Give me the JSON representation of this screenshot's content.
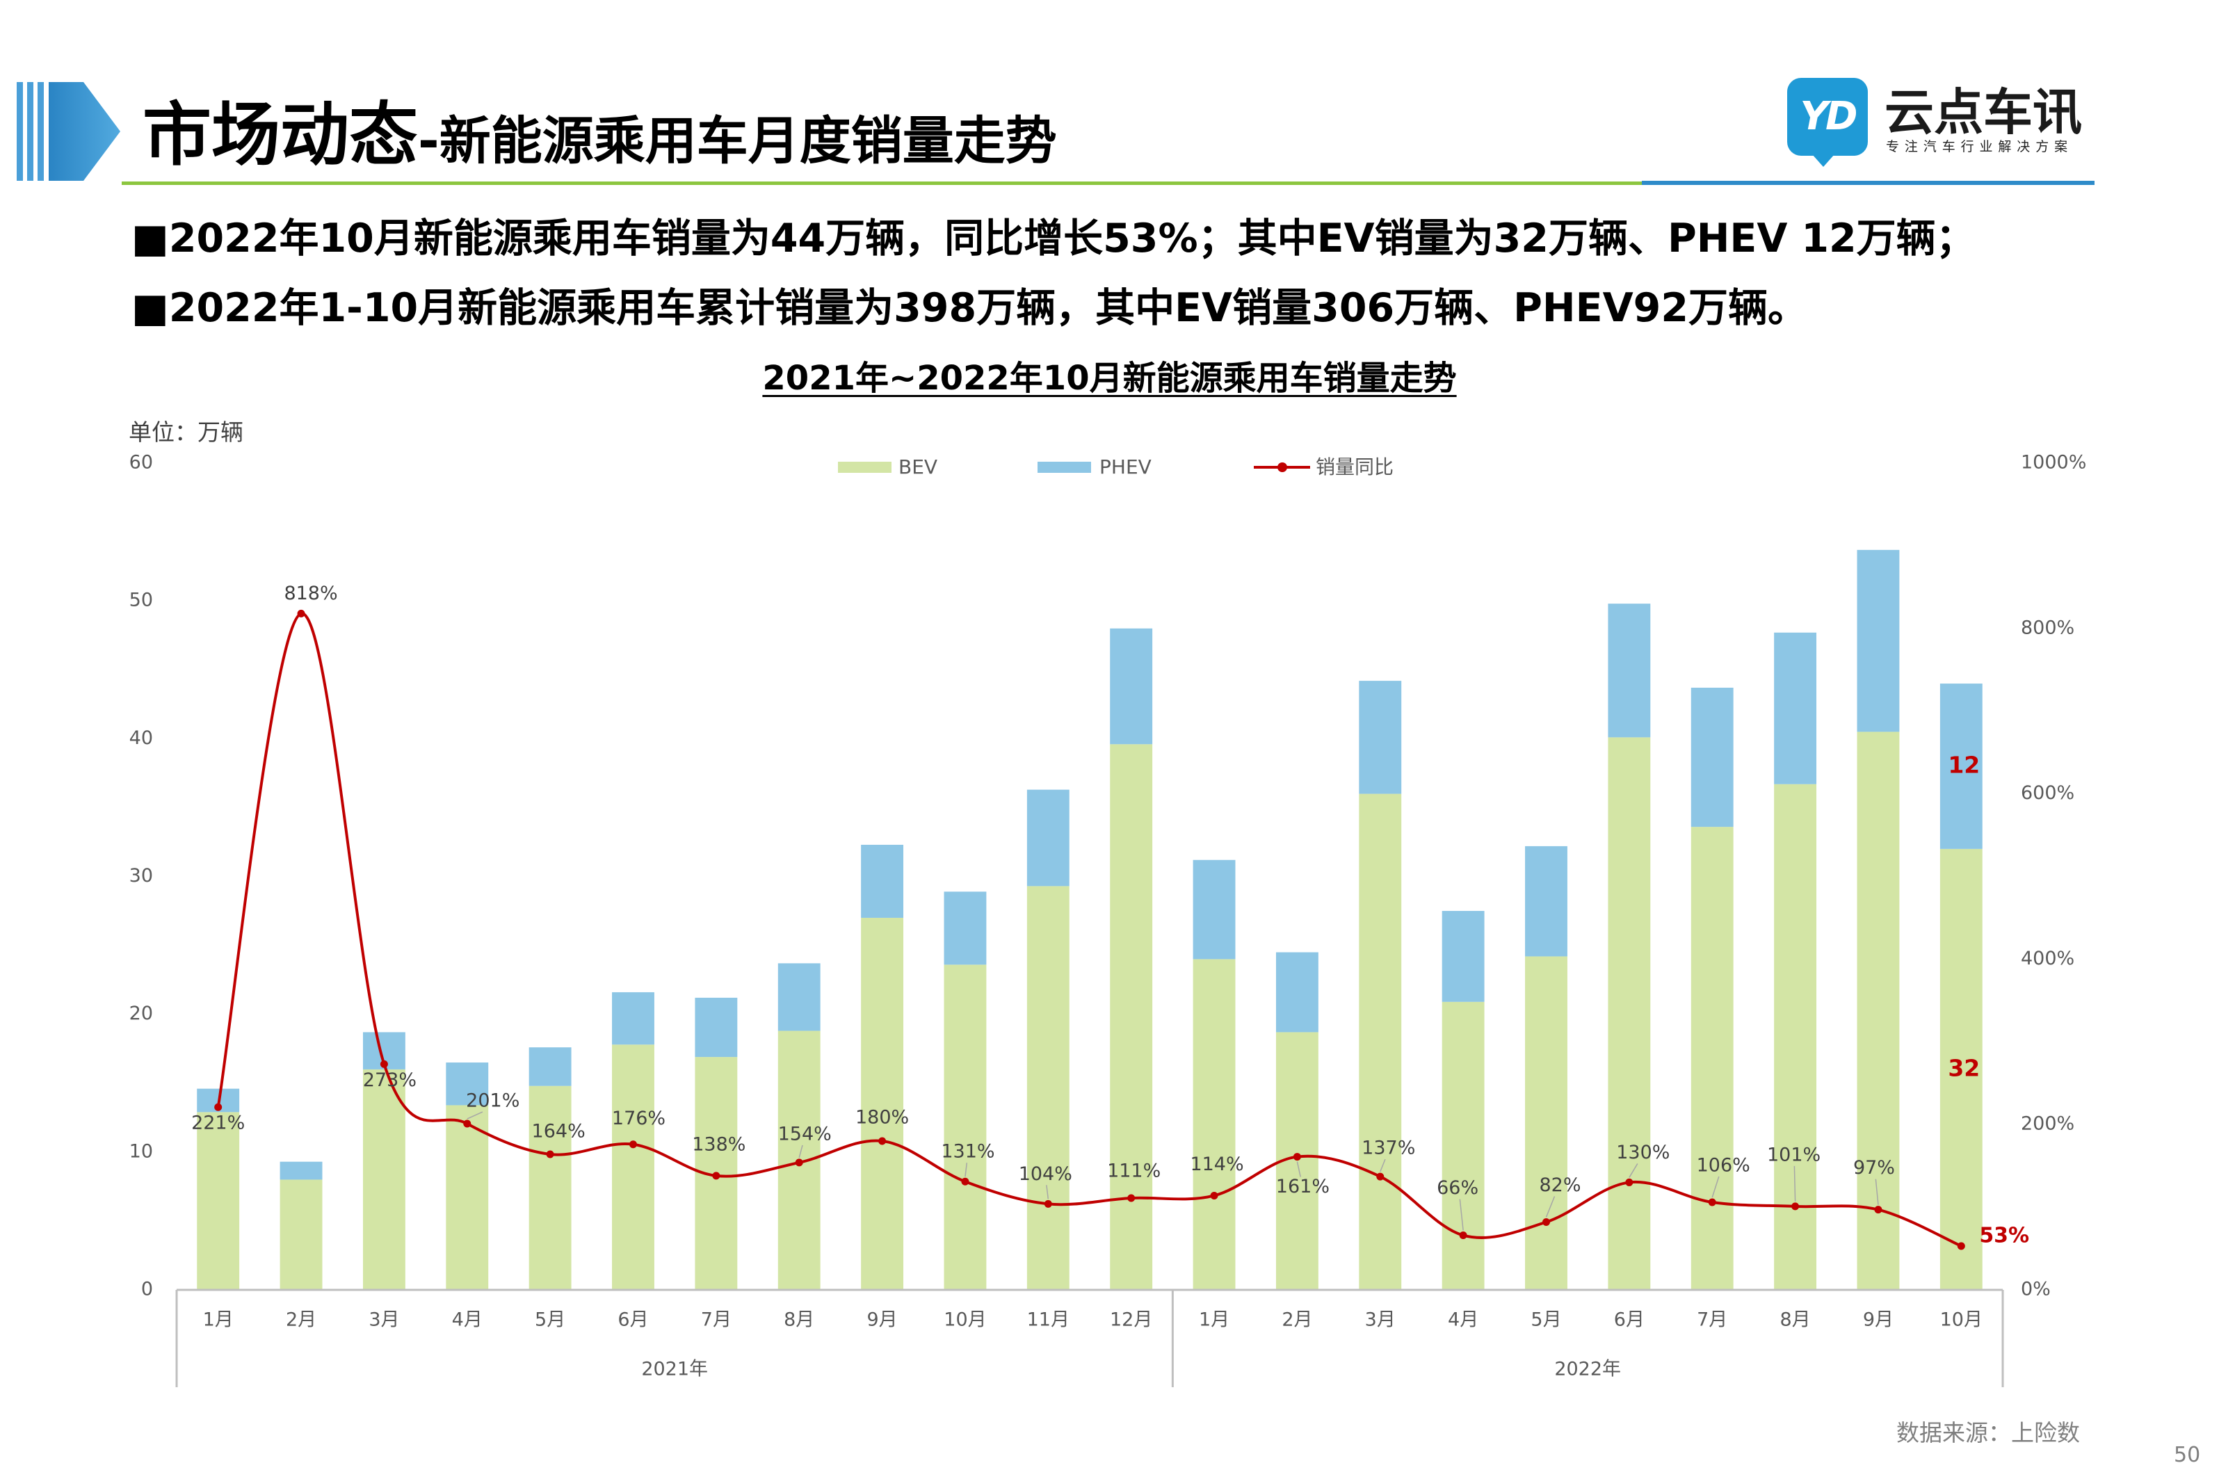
{
  "header": {
    "title_main": "市场动态",
    "title_sub": "-新能源乘用车月度销量走势",
    "mark_icon": "header-arrow-icon",
    "logo": {
      "icon": "yd-logo-icon",
      "icon_text": "YD",
      "name": "云点车讯",
      "tagline": "专注汽车行业解决方案"
    }
  },
  "bullets": [
    "■2022年10月新能源乘用车销量为44万辆，同比增长53%；其中EV销量为32万辆、PHEV 12万辆；",
    "■2022年1-10月新能源乘用车累计销量为398万辆，其中EV销量306万辆、PHEV92万辆。"
  ],
  "colors": {
    "header_blue": "#2E8BC9",
    "header_green": "#8CC63F",
    "logo_blue": "#1F9AD6",
    "highlight_red": "#C00000",
    "axis_gray": "#BFBFBF",
    "label_gray": "#595959"
  },
  "chart_data": {
    "type": "bar",
    "stacked": true,
    "title": "2021年~2022年10月新能源乘用车销量走势",
    "ylabel": "单位：万辆",
    "categories": [
      "1月",
      "2月",
      "3月",
      "4月",
      "5月",
      "6月",
      "7月",
      "8月",
      "9月",
      "10月",
      "11月",
      "12月",
      "1月",
      "2月",
      "3月",
      "4月",
      "5月",
      "6月",
      "7月",
      "8月",
      "9月",
      "10月"
    ],
    "groups": [
      {
        "label": "2021年",
        "count": 12
      },
      {
        "label": "2022年",
        "count": 10
      }
    ],
    "series": [
      {
        "name": "BEV",
        "type": "bar",
        "axis": "left",
        "color": "#D3E5A5",
        "values": [
          12.9,
          8.0,
          16.0,
          13.4,
          14.8,
          17.8,
          16.9,
          18.8,
          27.0,
          23.6,
          29.3,
          39.6,
          24.0,
          18.7,
          36.0,
          20.9,
          24.2,
          40.1,
          33.6,
          36.7,
          40.5,
          32
        ],
        "last_label": "32"
      },
      {
        "name": "PHEV",
        "type": "bar",
        "axis": "left",
        "color": "#8DC6E5",
        "values": [
          1.7,
          1.3,
          2.7,
          3.1,
          2.8,
          3.8,
          4.3,
          4.9,
          5.3,
          5.3,
          7.0,
          8.4,
          7.2,
          5.8,
          8.2,
          6.6,
          8.0,
          9.7,
          10.1,
          11.0,
          13.2,
          12
        ],
        "last_label": "12"
      },
      {
        "name": "销量同比",
        "type": "line",
        "axis": "right",
        "smooth": true,
        "color": "#C00000",
        "values": [
          221,
          818,
          273,
          201,
          164,
          176,
          138,
          154,
          180,
          131,
          104,
          111,
          114,
          161,
          137,
          66,
          82,
          130,
          106,
          101,
          97,
          53
        ],
        "labels": [
          "221%",
          "818%",
          "273%",
          "201%",
          "164%",
          "176%",
          "138%",
          "154%",
          "180%",
          "131%",
          "104%",
          "111%",
          "114%",
          "161%",
          "137%",
          "66%",
          "82%",
          "130%",
          "106%",
          "101%",
          "97%",
          "53%"
        ]
      }
    ],
    "y_left": {
      "range": [
        0,
        60
      ],
      "ticks": [
        0,
        10,
        20,
        30,
        40,
        50,
        60
      ],
      "tick_labels": [
        "0",
        "10",
        "20",
        "30",
        "40",
        "50",
        "60"
      ]
    },
    "y_right": {
      "range": [
        0,
        1000
      ],
      "ticks": [
        0,
        200,
        400,
        600,
        800,
        1000
      ],
      "tick_labels": [
        "0%",
        "200%",
        "400%",
        "600%",
        "800%",
        "1000%"
      ]
    },
    "legend_position": "top",
    "grid": false
  },
  "source": "数据来源：上险数",
  "page_number": "50"
}
